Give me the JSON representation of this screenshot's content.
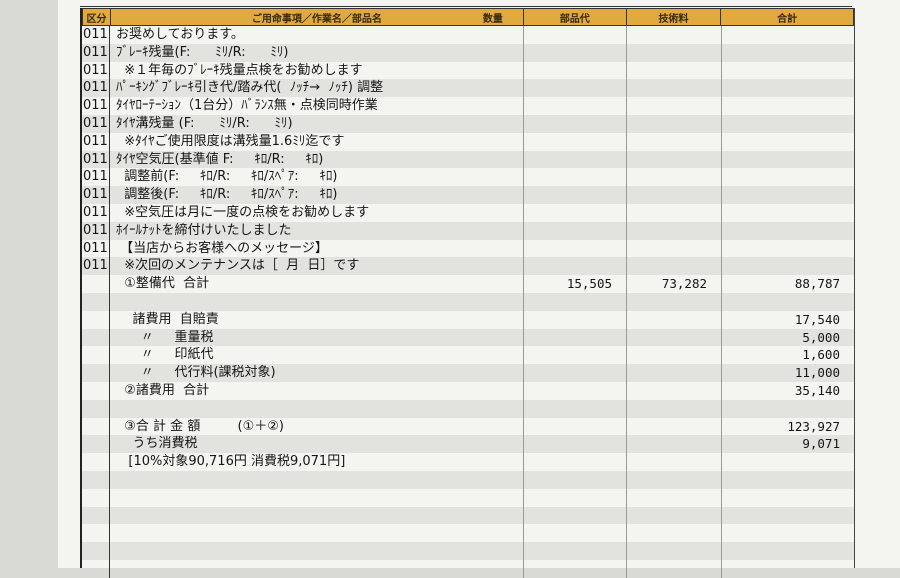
{
  "header": {
    "code": "区分",
    "item": "ご用命事項／作業名／部品名",
    "qty": "数量",
    "parts": "部品代",
    "labor": "技術料",
    "total": "合計"
  },
  "rows": [
    {
      "code": "011",
      "item": "お奨めしております。",
      "parts": "",
      "labor": "",
      "total": ""
    },
    {
      "code": "011",
      "item": "ﾌﾞﾚｰｷ残量(F:      ﾐﾘ/R:      ﾐﾘ)",
      "parts": "",
      "labor": "",
      "total": ""
    },
    {
      "code": "011",
      "item": "  ※１年毎のﾌﾞﾚｰｷ残量点検をお勧めします",
      "parts": "",
      "labor": "",
      "total": ""
    },
    {
      "code": "011",
      "item": "ﾊﾟｰｷﾝｸﾞﾌﾞﾚｰｷ引き代/踏み代(  ﾉｯﾁ→  ﾉｯﾁ) 調整",
      "parts": "",
      "labor": "",
      "total": ""
    },
    {
      "code": "011",
      "item": "ﾀｲﾔﾛｰﾃｰｼｮﾝ（1台分）ﾊﾞﾗﾝｽ無・点検同時作業",
      "parts": "",
      "labor": "",
      "total": ""
    },
    {
      "code": "011",
      "item": "ﾀｲﾔ溝残量 (F:      ﾐﾘ/R:      ﾐﾘ)",
      "parts": "",
      "labor": "",
      "total": ""
    },
    {
      "code": "011",
      "item": "  ※ﾀｲﾔご使用限度は溝残量1.6ﾐﾘ迄です",
      "parts": "",
      "labor": "",
      "total": ""
    },
    {
      "code": "011",
      "item": "ﾀｲﾔ空気圧(基準値 F:     ｷﾛ/R:     ｷﾛ)",
      "parts": "",
      "labor": "",
      "total": ""
    },
    {
      "code": "011",
      "item": "  調整前(F:     ｷﾛ/R:     ｷﾛ/ｽﾍﾟｱ:     ｷﾛ)",
      "parts": "",
      "labor": "",
      "total": ""
    },
    {
      "code": "011",
      "item": "  調整後(F:     ｷﾛ/R:     ｷﾛ/ｽﾍﾟｱ:     ｷﾛ)",
      "parts": "",
      "labor": "",
      "total": ""
    },
    {
      "code": "011",
      "item": "  ※空気圧は月に一度の点検をお勧めします",
      "parts": "",
      "labor": "",
      "total": ""
    },
    {
      "code": "011",
      "item": "ﾎｲｰﾙﾅｯﾄを締付けいたしました",
      "parts": "",
      "labor": "",
      "total": ""
    },
    {
      "code": "011",
      "item": " 【当店からお客様へのメッセージ】",
      "parts": "",
      "labor": "",
      "total": ""
    },
    {
      "code": "011",
      "item": "  ※次回のメンテナンスは［  月  日］です",
      "parts": "",
      "labor": "",
      "total": ""
    },
    {
      "code": "",
      "item": "  ①整備代  合計",
      "parts": "15,505",
      "labor": "73,282",
      "total": "88,787"
    },
    {
      "code": "",
      "item": "",
      "parts": "",
      "labor": "",
      "total": ""
    },
    {
      "code": "",
      "item": "    諸費用  自賠責",
      "parts": "",
      "labor": "",
      "total": "17,540"
    },
    {
      "code": "",
      "item": "      〃     重量税",
      "parts": "",
      "labor": "",
      "total": "5,000"
    },
    {
      "code": "",
      "item": "      〃     印紙代",
      "parts": "",
      "labor": "",
      "total": "1,600"
    },
    {
      "code": "",
      "item": "      〃     代行料(課税対象)",
      "parts": "",
      "labor": "",
      "total": "11,000"
    },
    {
      "code": "",
      "item": "  ②諸費用  合計",
      "parts": "",
      "labor": "",
      "total": "35,140"
    },
    {
      "code": "",
      "item": "",
      "parts": "",
      "labor": "",
      "total": ""
    },
    {
      "code": "",
      "item": "  ③合 計 金 額         (①＋②)",
      "parts": "",
      "labor": "",
      "total": "123,927"
    },
    {
      "code": "",
      "item": "    うち消費税",
      "parts": "",
      "labor": "",
      "total": "9,071"
    },
    {
      "code": "",
      "item": "   [10%対象90,716円 消費税9,071円]",
      "parts": "",
      "labor": "",
      "total": ""
    },
    {
      "code": "",
      "item": "",
      "parts": "",
      "labor": "",
      "total": ""
    },
    {
      "code": "",
      "item": "",
      "parts": "",
      "labor": "",
      "total": ""
    },
    {
      "code": "",
      "item": "",
      "parts": "",
      "labor": "",
      "total": ""
    },
    {
      "code": "",
      "item": "",
      "parts": "",
      "labor": "",
      "total": ""
    },
    {
      "code": "",
      "item": "",
      "parts": "",
      "labor": "",
      "total": ""
    },
    {
      "code": "",
      "item": "",
      "parts": "",
      "labor": "",
      "total": ""
    }
  ]
}
